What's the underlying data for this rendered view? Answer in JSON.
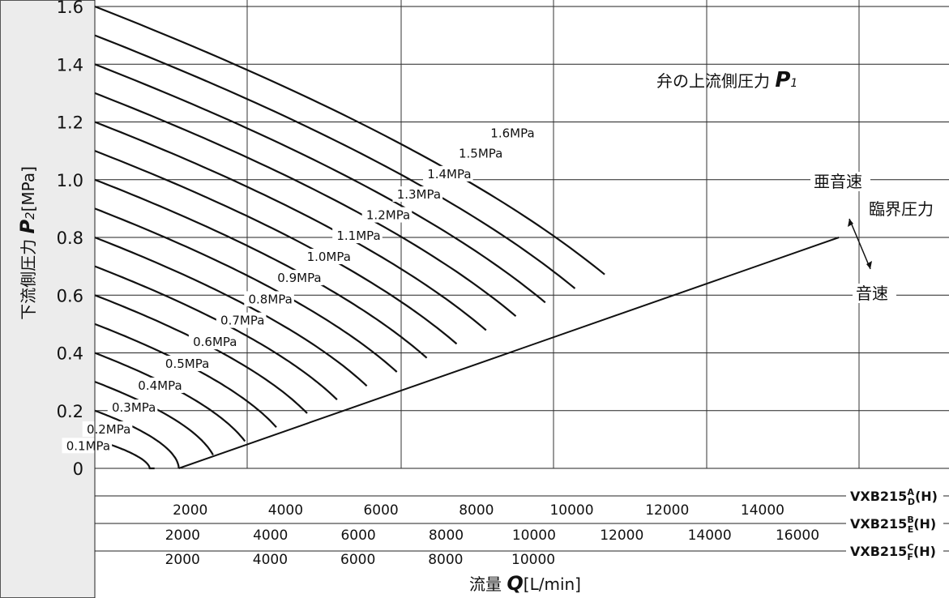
{
  "chart_data": {
    "type": "line",
    "ylabel": "下流側圧力",
    "ylabel_symbol": "P",
    "ylabel_subscript": "2",
    "ylabel_unit": "[MPa]",
    "xlabel": "流量",
    "xlabel_symbol": "Q",
    "xlabel_unit": "[L/min]",
    "ylim": [
      0,
      1.6
    ],
    "y_ticks": [
      "0",
      "0.2",
      "0.4",
      "0.6",
      "0.8",
      "1.0",
      "1.2",
      "1.4",
      "1.6"
    ],
    "grid": true,
    "legend_title": "弁の上流側圧力",
    "legend_symbol": "P",
    "legend_subscript": "1",
    "region_labels": [
      "亜音速",
      "臨界圧力",
      "音速"
    ],
    "x_axes": [
      {
        "model": "VXB215",
        "sup": "A",
        "sub": "D",
        "suffix": "(H)",
        "ticks": [
          2000,
          4000,
          6000,
          8000,
          10000,
          12000,
          14000
        ],
        "tick_labels": [
          "2000",
          "4000",
          "6000",
          "8000",
          "10000",
          "12000",
          "14000"
        ],
        "xlim": [
          0,
          15700
        ]
      },
      {
        "model": "VXB215",
        "sup": "B",
        "sub": "E",
        "suffix": "(H)",
        "ticks": [
          2000,
          4000,
          6000,
          8000,
          10000,
          12000,
          14000,
          16000
        ],
        "tick_labels": [
          "2000",
          "4000",
          "6000",
          "8000",
          "10000",
          "12000",
          "14000",
          "16000"
        ],
        "xlim": [
          0,
          29500
        ]
      },
      {
        "model": "VXB215",
        "sup": "C",
        "sub": "F",
        "suffix": "(H)",
        "ticks": [
          2000,
          4000,
          6000,
          8000,
          10000
        ],
        "tick_labels": [
          "2000",
          "4000",
          "6000",
          "8000",
          "10000"
        ],
        "xlim": [
          0,
          48500
        ]
      }
    ],
    "series": [
      {
        "name": "0.1MPa",
        "p1": 0.1,
        "sonic_flow": 1150
      },
      {
        "name": "0.2MPa",
        "p1": 0.2,
        "sonic_flow": 1760
      },
      {
        "name": "0.3MPa",
        "p1": 0.3,
        "sonic_flow": 2560
      },
      {
        "name": "0.4MPa",
        "p1": 0.4,
        "sonic_flow": 3380
      },
      {
        "name": "0.5MPa",
        "p1": 0.5,
        "sonic_flow": 4220
      },
      {
        "name": "0.6MPa",
        "p1": 0.6,
        "sonic_flow": 5060
      },
      {
        "name": "0.7MPa",
        "p1": 0.7,
        "sonic_flow": 5880
      },
      {
        "name": "0.8MPa",
        "p1": 0.8,
        "sonic_flow": 6700
      },
      {
        "name": "0.9MPa",
        "p1": 0.9,
        "sonic_flow": 7540
      },
      {
        "name": "1.0MPa",
        "p1": 1.0,
        "sonic_flow": 8380
      },
      {
        "name": "1.1MPa",
        "p1": 1.1,
        "sonic_flow": 9220
      },
      {
        "name": "1.2MPa",
        "p1": 1.2,
        "sonic_flow": 10040
      },
      {
        "name": "1.3MPa",
        "p1": 1.3,
        "sonic_flow": 10880
      },
      {
        "name": "1.4MPa",
        "p1": 1.4,
        "sonic_flow": 11700
      },
      {
        "name": "1.5MPa",
        "p1": 1.5,
        "sonic_flow": 12540
      },
      {
        "name": "1.6MPa",
        "p1": 1.6,
        "sonic_flow": 13380
      }
    ],
    "critical_pressure_line": {
      "label": "臨界圧力",
      "points": [
        [
          1760,
          0
        ],
        [
          15600,
          0.8
        ]
      ]
    }
  }
}
